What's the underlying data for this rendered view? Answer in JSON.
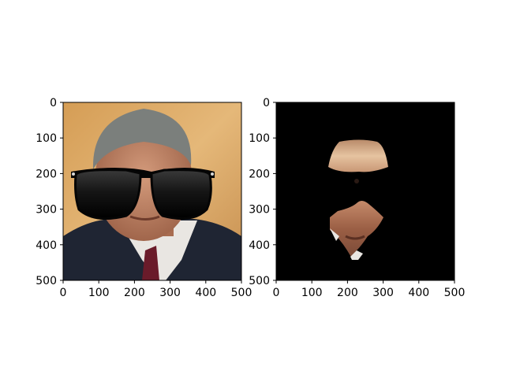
{
  "chart_data": [
    {
      "type": "image",
      "subject": "face photo with sunglasses overlay",
      "xlim": [
        0,
        500
      ],
      "ylim": [
        500,
        0
      ],
      "xticks": [
        0,
        100,
        200,
        300,
        400,
        500
      ],
      "yticks": [
        0,
        100,
        200,
        300,
        400,
        500
      ],
      "title": "",
      "xlabel": "",
      "ylabel": ""
    },
    {
      "type": "image",
      "subject": "masked face regions on black background",
      "xlim": [
        0,
        500
      ],
      "ylim": [
        500,
        0
      ],
      "xticks": [
        0,
        100,
        200,
        300,
        400,
        500
      ],
      "yticks": [
        0,
        100,
        200,
        300,
        400,
        500
      ],
      "title": "",
      "xlabel": "",
      "ylabel": ""
    }
  ],
  "colors": {
    "background_left": "#d9a765",
    "mask_background": "#000000",
    "lens": "#111111",
    "jacket": "#1f2533",
    "tie": "#6a1b2a",
    "skin": "#c48a6a"
  }
}
